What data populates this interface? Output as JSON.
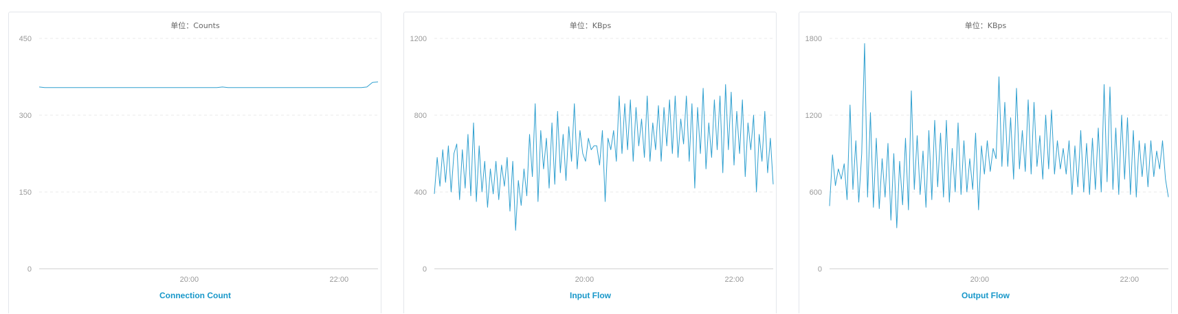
{
  "chart_data": [
    {
      "type": "line",
      "unit": "单位：Counts",
      "title": "Connection Count",
      "ylim": [
        0,
        450
      ],
      "yticks": [
        "0",
        "150",
        "300",
        "450"
      ],
      "xticks": [
        {
          "label": "20:00",
          "t": 0.443
        },
        {
          "label": "22:00",
          "t": 0.885
        }
      ],
      "grid": true,
      "color": "#2e9fcf",
      "series": [
        {
          "values": [
            355,
            354,
            354,
            354,
            354,
            354,
            354,
            354,
            354,
            354,
            354,
            354,
            354,
            354,
            354,
            354,
            354,
            354,
            354,
            354,
            354,
            354,
            354,
            354,
            354,
            354,
            354,
            354,
            354,
            354,
            354,
            354,
            354,
            355,
            354,
            354,
            354,
            354,
            354,
            354,
            354,
            354,
            354,
            354,
            354,
            354,
            354,
            354,
            354,
            354,
            354,
            354,
            354,
            354,
            354,
            354,
            354,
            354,
            354,
            355,
            364,
            365
          ]
        }
      ]
    },
    {
      "type": "line",
      "unit": "单位：KBps",
      "title": "Input Flow",
      "ylim": [
        0,
        1200
      ],
      "yticks": [
        "0",
        "400",
        "800",
        "1200"
      ],
      "xticks": [
        {
          "label": "20:00",
          "t": 0.443
        },
        {
          "label": "22:00",
          "t": 0.885
        }
      ],
      "grid": true,
      "color": "#2e9fcf",
      "series": [
        {
          "values": [
            390,
            580,
            430,
            620,
            450,
            640,
            400,
            600,
            650,
            360,
            620,
            420,
            700,
            380,
            760,
            350,
            640,
            400,
            560,
            320,
            520,
            390,
            560,
            360,
            540,
            430,
            580,
            300,
            560,
            200,
            460,
            330,
            520,
            380,
            700,
            480,
            860,
            350,
            720,
            520,
            680,
            420,
            760,
            440,
            820,
            500,
            700,
            460,
            740,
            560,
            860,
            520,
            720,
            600,
            560,
            680,
            620,
            640,
            640,
            540,
            720,
            350,
            680,
            620,
            720,
            560,
            900,
            600,
            860,
            620,
            880,
            560,
            840,
            640,
            780,
            580,
            900,
            560,
            760,
            620,
            850,
            560,
            840,
            640,
            880,
            600,
            900,
            580,
            780,
            650,
            900,
            560,
            860,
            420,
            840,
            600,
            940,
            520,
            760,
            580,
            880,
            620,
            900,
            500,
            960,
            620,
            920,
            540,
            820,
            600,
            880,
            480,
            760,
            620,
            800,
            400,
            700,
            560,
            820,
            500,
            680,
            440
          ]
        }
      ]
    },
    {
      "type": "line",
      "unit": "单位：KBps",
      "title": "Output Flow",
      "ylim": [
        0,
        1800
      ],
      "yticks": [
        "0",
        "600",
        "1200",
        "1800"
      ],
      "xticks": [
        {
          "label": "20:00",
          "t": 0.443
        },
        {
          "label": "22:00",
          "t": 0.885
        }
      ],
      "grid": true,
      "color": "#2e9fcf",
      "series": [
        {
          "values": [
            490,
            890,
            650,
            780,
            700,
            820,
            540,
            1280,
            620,
            1000,
            520,
            900,
            1760,
            560,
            1220,
            480,
            1020,
            470,
            860,
            560,
            980,
            380,
            900,
            320,
            840,
            500,
            1020,
            460,
            1390,
            620,
            1040,
            580,
            920,
            480,
            1080,
            540,
            1160,
            640,
            1060,
            560,
            1160,
            520,
            940,
            600,
            1140,
            580,
            1000,
            600,
            860,
            620,
            1060,
            460,
            960,
            740,
            1000,
            760,
            940,
            860,
            1500,
            800,
            1300,
            800,
            1180,
            700,
            1410,
            780,
            1080,
            760,
            1320,
            740,
            1300,
            800,
            1040,
            700,
            1200,
            780,
            1240,
            740,
            1000,
            780,
            940,
            740,
            1000,
            580,
            960,
            640,
            1080,
            600,
            980,
            580,
            1020,
            620,
            1100,
            600,
            1440,
            680,
            1420,
            620,
            1100,
            580,
            1200,
            700,
            1180,
            580,
            1080,
            560,
            1000,
            720,
            980,
            640,
            1000,
            720,
            920,
            780,
            1000,
            700,
            560
          ]
        }
      ]
    }
  ]
}
